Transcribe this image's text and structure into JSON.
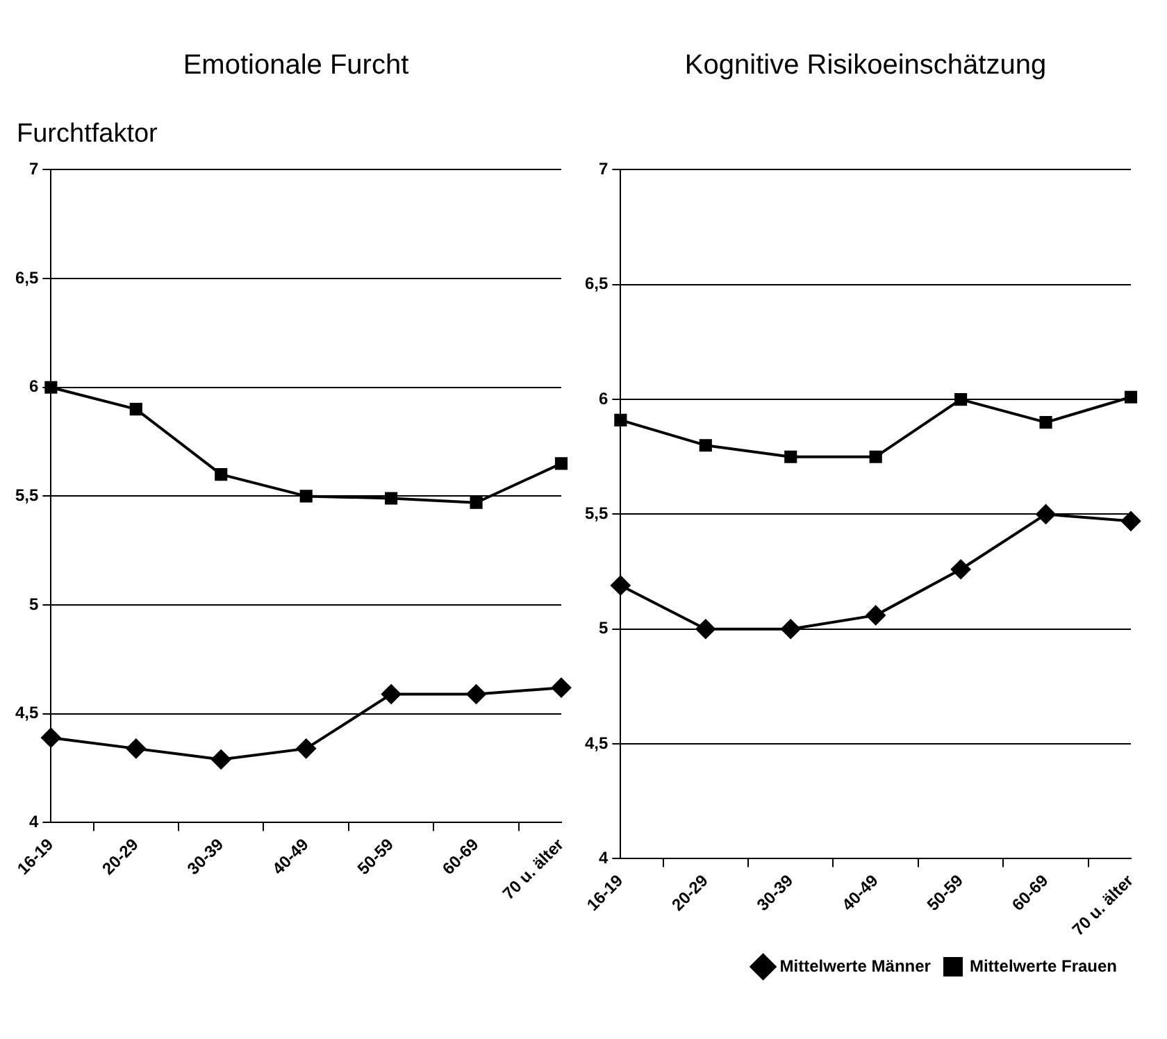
{
  "chart_data": [
    {
      "type": "line",
      "title": "Emotionale Furcht",
      "ylabel": "Furchtfaktor",
      "categories": [
        "16-19",
        "20-29",
        "30-39",
        "40-49",
        "50-59",
        "60-69",
        "70 u. älter"
      ],
      "ylim": [
        4,
        7
      ],
      "yticks": [
        4,
        {
          "value": 4.5,
          "label": "4,5"
        },
        5,
        {
          "value": 5.5,
          "label": "5,5"
        },
        6,
        {
          "value": 6.5,
          "label": "6,5"
        },
        7
      ],
      "grid": "y",
      "legend": false,
      "series": [
        {
          "color": "#000000",
          "marker": "diamond",
          "values": [
            4.39,
            4.34,
            4.29,
            4.34,
            4.59,
            4.59,
            4.62
          ]
        },
        {
          "color": "#000000",
          "marker": "square",
          "values": [
            6.0,
            5.9,
            5.6,
            5.5,
            5.49,
            5.47,
            5.65
          ]
        }
      ]
    },
    {
      "type": "line",
      "title": "Kognitive Risikoeinschätzung",
      "categories": [
        "16-19",
        "20-29",
        "30-39",
        "40-49",
        "50-59",
        "60-69",
        "70 u. älter"
      ],
      "ylim": [
        4,
        7
      ],
      "yticks": [
        4,
        {
          "value": 4.5,
          "label": "4,5"
        },
        5,
        {
          "value": 5.5,
          "label": "5,5"
        },
        6,
        {
          "value": 6.5,
          "label": "6,5"
        },
        7
      ],
      "grid": "y",
      "legend": "bottom",
      "series": [
        {
          "name": "Mittelwerte Männer",
          "color": "#000000",
          "marker": "diamond",
          "values": [
            5.19,
            5.0,
            5.0,
            5.06,
            5.26,
            5.5,
            5.47
          ]
        },
        {
          "name": "Mittelwerte Frauen",
          "color": "#000000",
          "marker": "square",
          "values": [
            5.91,
            5.8,
            5.75,
            5.75,
            6.0,
            5.9,
            6.01
          ]
        }
      ]
    }
  ]
}
